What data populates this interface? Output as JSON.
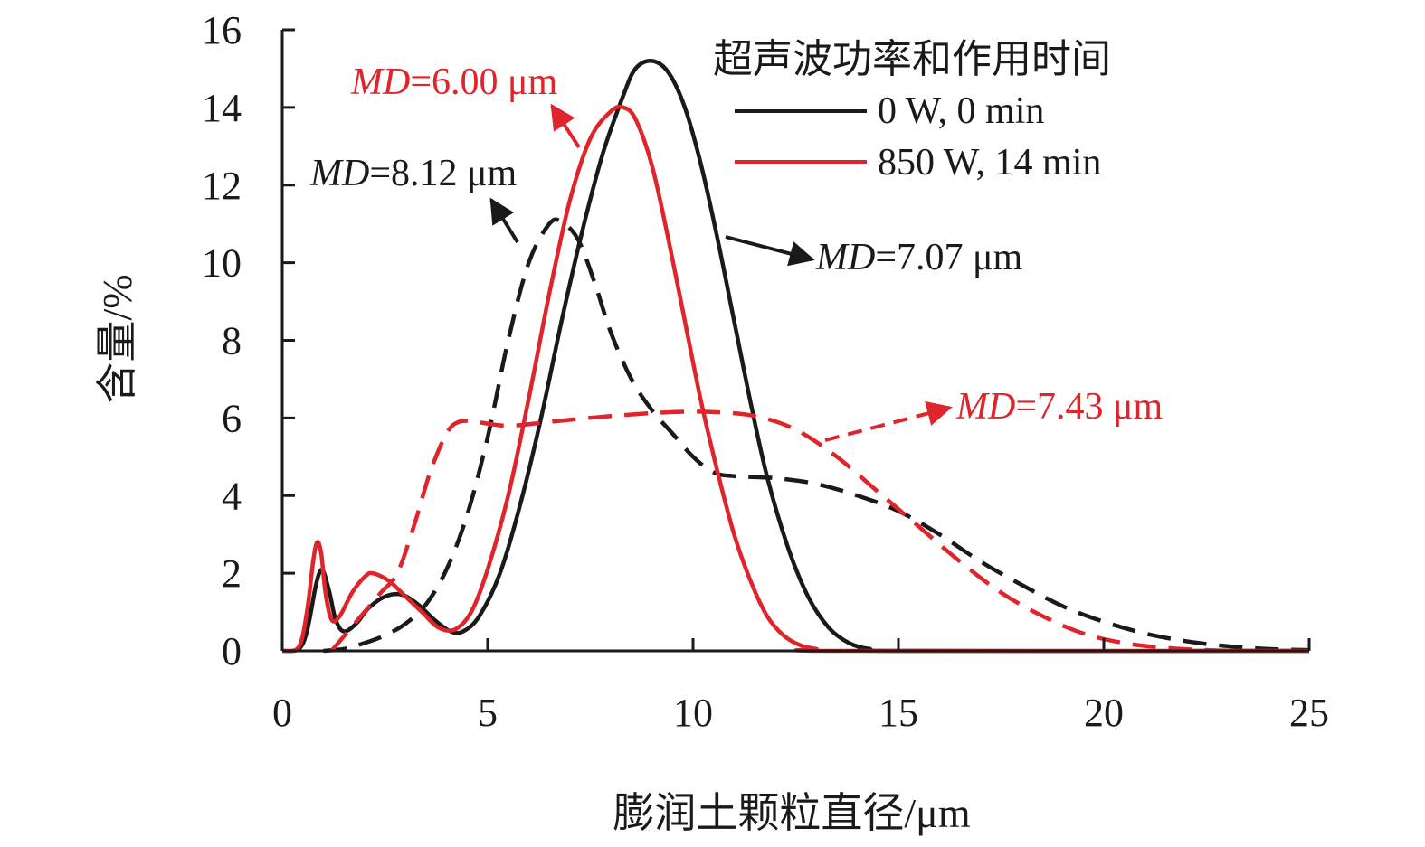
{
  "chart_data": {
    "type": "line",
    "xlabel": "膨润土颗粒直径/μm",
    "ylabel": "含量/%",
    "xlim": [
      0,
      25
    ],
    "ylim": [
      0,
      16
    ],
    "x_ticks": [
      "0",
      "5",
      "10",
      "15",
      "20",
      "25"
    ],
    "y_ticks": [
      "0",
      "2",
      "4",
      "6",
      "8",
      "10",
      "12",
      "14",
      "16"
    ],
    "grid": false,
    "legend": {
      "title": "超声波功率和作用时间",
      "position": "top-right",
      "entries": [
        {
          "label": "0 W, 0 min",
          "color": "#1a1a1a"
        },
        {
          "label": "850 W, 14 min",
          "color": "#e0242b"
        }
      ]
    },
    "series": [
      {
        "color": "#1a1a1a",
        "dash": "solid",
        "points": [
          [
            0,
            0
          ],
          [
            0.4,
            0.05
          ],
          [
            0.6,
            0.5
          ],
          [
            0.8,
            1.6
          ],
          [
            0.9,
            2.0
          ],
          [
            1.0,
            2.05
          ],
          [
            1.15,
            1.5
          ],
          [
            1.3,
            0.8
          ],
          [
            1.5,
            0.5
          ],
          [
            1.8,
            0.7
          ],
          [
            2.1,
            1.1
          ],
          [
            2.5,
            1.4
          ],
          [
            2.9,
            1.45
          ],
          [
            3.3,
            1.2
          ],
          [
            3.7,
            0.8
          ],
          [
            4.1,
            0.5
          ],
          [
            4.4,
            0.5
          ],
          [
            4.8,
            0.9
          ],
          [
            5.3,
            2.0
          ],
          [
            5.8,
            3.8
          ],
          [
            6.3,
            6.0
          ],
          [
            6.8,
            8.5
          ],
          [
            7.3,
            10.8
          ],
          [
            7.8,
            12.8
          ],
          [
            8.3,
            14.3
          ],
          [
            8.6,
            15.0
          ],
          [
            9.0,
            15.2
          ],
          [
            9.4,
            14.9
          ],
          [
            9.8,
            14.0
          ],
          [
            10.2,
            12.5
          ],
          [
            10.6,
            10.6
          ],
          [
            11.0,
            8.5
          ],
          [
            11.4,
            6.4
          ],
          [
            11.8,
            4.5
          ],
          [
            12.3,
            2.7
          ],
          [
            12.8,
            1.4
          ],
          [
            13.3,
            0.6
          ],
          [
            13.8,
            0.2
          ],
          [
            14.3,
            0.05
          ],
          [
            15,
            0
          ],
          [
            25,
            0
          ]
        ]
      },
      {
        "color": "#1a1a1a",
        "dash": "dashed",
        "points": [
          [
            1.0,
            0
          ],
          [
            1.5,
            0.05
          ],
          [
            2.0,
            0.2
          ],
          [
            2.5,
            0.4
          ],
          [
            3.0,
            0.7
          ],
          [
            3.5,
            1.2
          ],
          [
            4.0,
            2.1
          ],
          [
            4.5,
            3.5
          ],
          [
            5.0,
            5.5
          ],
          [
            5.5,
            8.0
          ],
          [
            6.0,
            10.0
          ],
          [
            6.5,
            11.0
          ],
          [
            6.8,
            11.05
          ],
          [
            7.2,
            10.6
          ],
          [
            7.6,
            9.5
          ],
          [
            8.0,
            8.2
          ],
          [
            8.5,
            7.0
          ],
          [
            9.0,
            6.2
          ],
          [
            9.5,
            5.6
          ],
          [
            10.0,
            5.0
          ],
          [
            10.5,
            4.6
          ],
          [
            11.0,
            4.5
          ],
          [
            12.0,
            4.45
          ],
          [
            13.0,
            4.3
          ],
          [
            14.0,
            4.0
          ],
          [
            15.0,
            3.6
          ],
          [
            16.0,
            3.0
          ],
          [
            17.0,
            2.3
          ],
          [
            18.0,
            1.7
          ],
          [
            19.0,
            1.15
          ],
          [
            20.0,
            0.75
          ],
          [
            21.0,
            0.45
          ],
          [
            22.0,
            0.25
          ],
          [
            23.0,
            0.12
          ],
          [
            24.0,
            0.05
          ],
          [
            25.0,
            0.02
          ]
        ]
      },
      {
        "color": "#e0242b",
        "dash": "solid",
        "points": [
          [
            0,
            0
          ],
          [
            0.4,
            0.1
          ],
          [
            0.6,
            1.0
          ],
          [
            0.75,
            2.3
          ],
          [
            0.85,
            2.8
          ],
          [
            0.95,
            2.5
          ],
          [
            1.05,
            1.5
          ],
          [
            1.2,
            0.8
          ],
          [
            1.4,
            0.9
          ],
          [
            1.7,
            1.5
          ],
          [
            2.0,
            1.9
          ],
          [
            2.2,
            2.0
          ],
          [
            2.6,
            1.8
          ],
          [
            3.0,
            1.4
          ],
          [
            3.4,
            1.0
          ],
          [
            3.8,
            0.6
          ],
          [
            4.2,
            0.55
          ],
          [
            4.6,
            1.0
          ],
          [
            5.0,
            2.1
          ],
          [
            5.5,
            4.0
          ],
          [
            6.0,
            6.5
          ],
          [
            6.5,
            9.2
          ],
          [
            7.0,
            11.6
          ],
          [
            7.5,
            13.2
          ],
          [
            8.0,
            13.9
          ],
          [
            8.3,
            14.0
          ],
          [
            8.6,
            13.7
          ],
          [
            9.0,
            12.5
          ],
          [
            9.4,
            10.6
          ],
          [
            9.8,
            8.5
          ],
          [
            10.2,
            6.4
          ],
          [
            10.6,
            4.6
          ],
          [
            11.0,
            3.0
          ],
          [
            11.4,
            1.8
          ],
          [
            11.8,
            0.9
          ],
          [
            12.2,
            0.4
          ],
          [
            12.6,
            0.15
          ],
          [
            13.0,
            0.05
          ],
          [
            13.5,
            0
          ],
          [
            25,
            0
          ]
        ]
      },
      {
        "color": "#e0242b",
        "dash": "dashed",
        "points": [
          [
            1.2,
            0
          ],
          [
            1.6,
            0.5
          ],
          [
            2.0,
            1.0
          ],
          [
            2.4,
            1.5
          ],
          [
            2.8,
            2.0
          ],
          [
            3.2,
            3.2
          ],
          [
            3.6,
            4.6
          ],
          [
            4.0,
            5.6
          ],
          [
            4.3,
            5.9
          ],
          [
            4.7,
            5.9
          ],
          [
            5.5,
            5.8
          ],
          [
            6.5,
            5.9
          ],
          [
            8.0,
            6.05
          ],
          [
            9.5,
            6.15
          ],
          [
            10.5,
            6.15
          ],
          [
            11.5,
            6.05
          ],
          [
            12.5,
            5.7
          ],
          [
            13.5,
            5.0
          ],
          [
            14.5,
            4.1
          ],
          [
            15.5,
            3.2
          ],
          [
            16.5,
            2.3
          ],
          [
            17.5,
            1.5
          ],
          [
            18.5,
            0.9
          ],
          [
            19.5,
            0.45
          ],
          [
            20.5,
            0.2
          ],
          [
            21.5,
            0.08
          ],
          [
            22.5,
            0.02
          ],
          [
            23.5,
            0
          ]
        ]
      }
    ],
    "annotations": [
      {
        "label": "MD",
        "value": "=6.00 μm",
        "color": "#e0242b"
      },
      {
        "label": "MD",
        "value": "=8.12 μm",
        "color": "#1a1a1a"
      },
      {
        "label": "MD",
        "value": "=7.07 μm",
        "color": "#1a1a1a"
      },
      {
        "label": "MD",
        "value": "=7.43 μm",
        "color": "#e0242b"
      }
    ]
  }
}
